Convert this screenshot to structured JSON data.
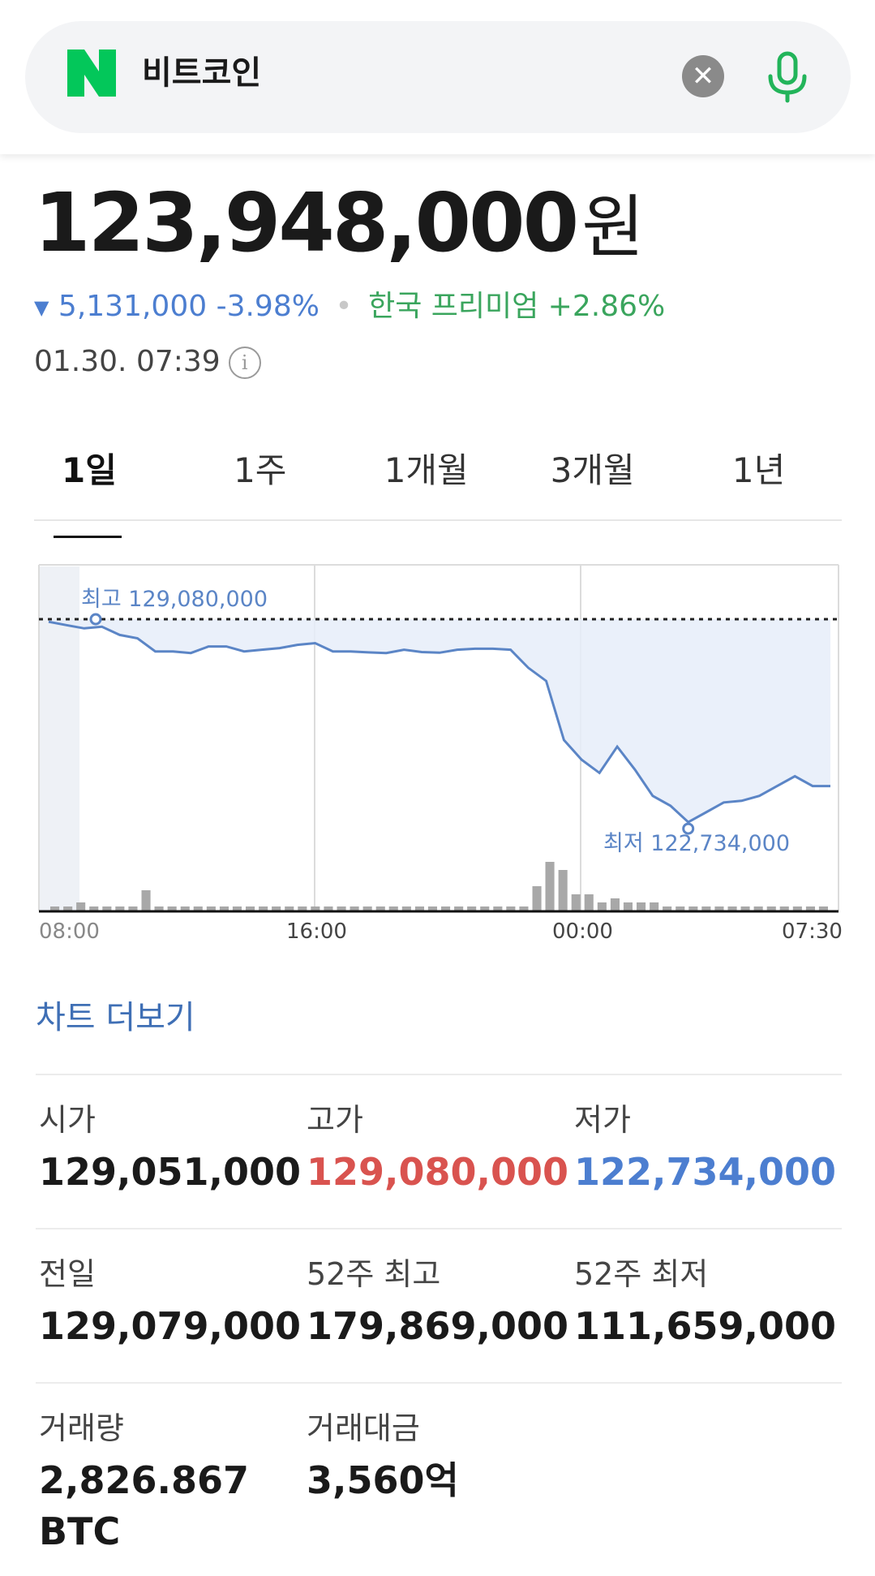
{
  "search": {
    "query": "비트코인",
    "logo_letter": "N",
    "clear_icon": "close-icon",
    "mic_icon": "microphone-icon"
  },
  "price": {
    "value": "123,948,000",
    "unit": "원",
    "change_arrow": "▼",
    "change": "5,131,000 -3.98%",
    "premium_label": "한국 프리미엄 +2.86%",
    "timestamp": "01.30. 07:39"
  },
  "tabs": [
    {
      "label": "1일",
      "active": true
    },
    {
      "label": "1주",
      "active": false
    },
    {
      "label": "1개월",
      "active": false
    },
    {
      "label": "3개월",
      "active": false
    },
    {
      "label": "1년",
      "active": false
    }
  ],
  "chart_data": {
    "type": "line",
    "x_ticks": [
      "08:00",
      "16:00",
      "00:00",
      "07:30"
    ],
    "high_label": "최고 129,080,000",
    "low_label": "최저 122,734,000",
    "high": 129080000,
    "low": 122734000,
    "series": [
      {
        "values": [
          129.0,
          128.9,
          128.8,
          128.85,
          128.6,
          128.5,
          128.1,
          128.1,
          128.05,
          128.25,
          128.25,
          128.1,
          128.15,
          128.2,
          128.3,
          128.35,
          128.1,
          128.1,
          128.07,
          128.05,
          128.15,
          128.08,
          128.06,
          128.15,
          128.18,
          128.18,
          128.15,
          127.6,
          127.2,
          125.4,
          124.8,
          124.4,
          125.2,
          124.5,
          123.7,
          123.4,
          122.9,
          123.2,
          123.5,
          123.55,
          123.7,
          124.0,
          124.3,
          124.0,
          124.0
        ]
      }
    ],
    "volume": [
      1,
      1,
      2,
      1,
      1,
      1,
      1,
      5,
      1,
      1,
      1,
      1,
      1,
      1,
      1,
      1,
      1,
      1,
      1,
      1,
      1,
      1,
      1,
      1,
      1,
      1,
      1,
      1,
      1,
      1,
      1,
      1,
      1,
      1,
      1,
      1,
      1,
      6,
      12,
      10,
      4,
      4,
      2,
      3,
      2,
      2,
      2,
      1,
      1,
      1,
      1,
      1,
      1,
      1,
      1,
      1,
      1,
      1,
      1,
      1
    ],
    "colors": {
      "line": "#5b85c6",
      "fill": "#e6edf9",
      "volume": "#a8a8a8",
      "grid": "#dcdcdc"
    }
  },
  "more_chart_label": "차트 더보기",
  "stats": [
    [
      {
        "label": "시가",
        "value": "129,051,000",
        "tone": ""
      },
      {
        "label": "고가",
        "value": "129,080,000",
        "tone": "red"
      },
      {
        "label": "저가",
        "value": "122,734,000",
        "tone": "blue"
      }
    ],
    [
      {
        "label": "전일",
        "value": "129,079,000",
        "tone": ""
      },
      {
        "label": "52주 최고",
        "value": "179,869,000",
        "tone": ""
      },
      {
        "label": "52주 최저",
        "value": "111,659,000",
        "tone": ""
      }
    ],
    [
      {
        "label": "거래량",
        "value": "2,826.867",
        "value2": "BTC",
        "tone": ""
      },
      {
        "label": "거래대금",
        "value": "3,560억",
        "tone": ""
      }
    ]
  ],
  "colors": {
    "naver_green": "#03c75a",
    "down_blue": "#4c7ed0",
    "up_red": "#d9534f",
    "premium_green": "#3aa55d"
  }
}
